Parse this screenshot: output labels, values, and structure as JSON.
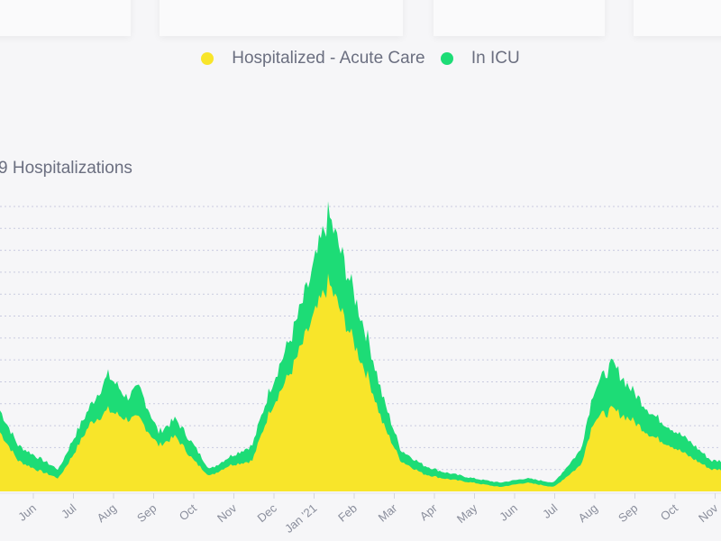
{
  "colors": {
    "acute": "#f8e52a",
    "icu": "#1ddc76",
    "grid": "#c9cbe0",
    "text": "#6b6f80"
  },
  "chart_data": {
    "type": "area",
    "stacked": true,
    "title": "9 Hospitalizations",
    "xlabel": "",
    "ylabel": "",
    "x_units": "months since Jun 1 2020",
    "ylim": [
      0,
      13
    ],
    "grid": true,
    "legend_position": "top-center",
    "legend": [
      "Hospitalized - Acute Care",
      "In ICU"
    ],
    "x_ticks": [
      "Jun",
      "Jul",
      "Aug",
      "Sep",
      "Oct",
      "Nov",
      "Dec",
      "Jan '21",
      "Feb",
      "Mar",
      "Apr",
      "May",
      "Jun",
      "Jul",
      "Aug",
      "Sep",
      "Oct",
      "Nov"
    ],
    "x": [
      -0.83,
      -0.38,
      0.07,
      0.63,
      0.97,
      1.42,
      1.87,
      2.33,
      2.65,
      3.12,
      3.55,
      4.0,
      4.4,
      4.9,
      5.46,
      5.9,
      6.46,
      6.91,
      7.36,
      7.81,
      8.37,
      8.71,
      9.16,
      9.72,
      10.2,
      10.96,
      11.63,
      12.3,
      12.98,
      13.65,
      13.98,
      14.44,
      14.89,
      15.45,
      15.9,
      16.35,
      16.91,
      17.47,
      18.15
    ],
    "series": [
      {
        "name": "Hospitalized - Acute Care",
        "values": [
          2.7,
          1.4,
          1.0,
          0.6,
          1.6,
          3.1,
          3.7,
          3.3,
          3.3,
          2.1,
          2.5,
          1.4,
          0.7,
          1.2,
          1.4,
          3.7,
          5.6,
          7.6,
          9.5,
          7.6,
          5.1,
          3.1,
          1.4,
          0.8,
          0.6,
          0.4,
          0.2,
          0.4,
          0.2,
          1.2,
          3.3,
          3.7,
          3.3,
          2.5,
          2.1,
          1.6,
          1.0,
          1.0,
          1.0
        ]
      },
      {
        "name": "In ICU",
        "values": [
          1.0,
          0.7,
          0.6,
          0.4,
          0.7,
          0.8,
          1.6,
          1.0,
          1.4,
          0.6,
          0.8,
          0.7,
          0.3,
          0.4,
          0.7,
          1.0,
          1.6,
          2.1,
          3.1,
          2.5,
          1.7,
          1.2,
          0.5,
          0.4,
          0.3,
          0.2,
          0.2,
          0.2,
          0.2,
          0.7,
          1.4,
          2.1,
          1.4,
          1.0,
          0.8,
          0.7,
          0.4,
          0.4,
          0.4
        ]
      }
    ]
  }
}
